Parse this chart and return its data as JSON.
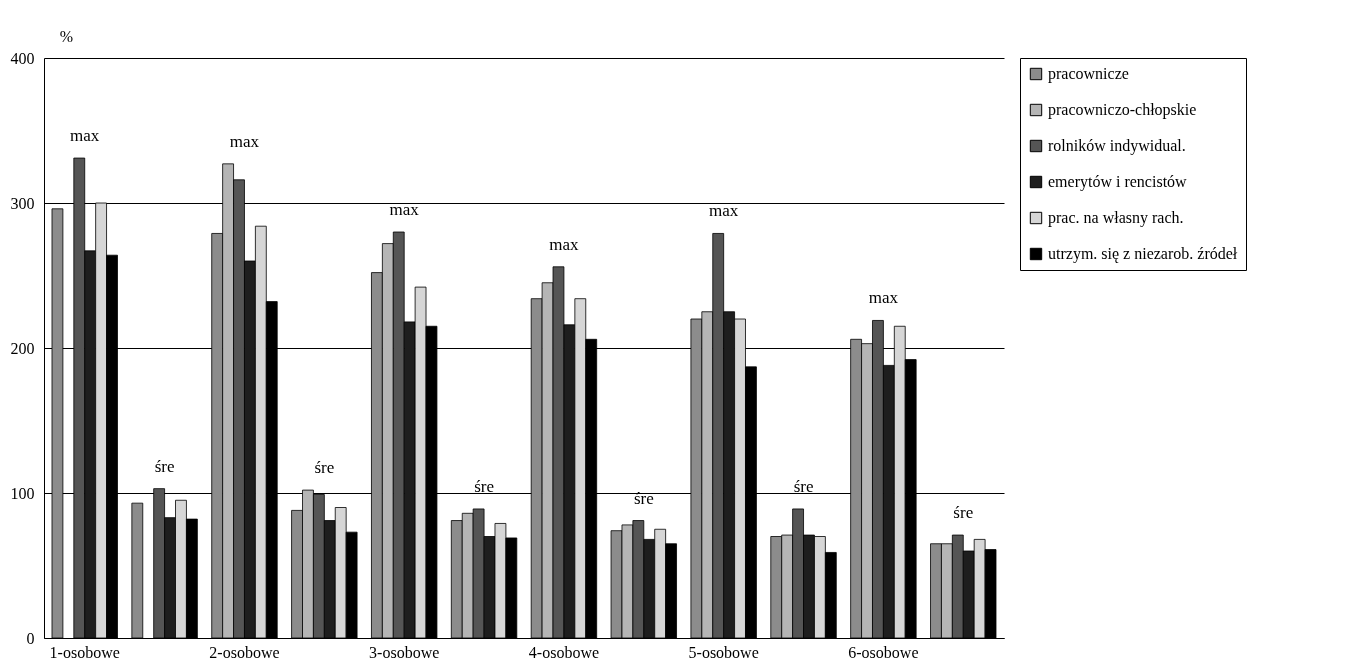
{
  "chart_data": {
    "type": "bar",
    "ylabel": "%",
    "categories": [
      "1-osobowe",
      null,
      "2-osobowe",
      null,
      "3-osobowe",
      null,
      "4-osobowe",
      null,
      "5-osobowe",
      null,
      "6-osobowe",
      null
    ],
    "series": [
      {
        "name": "pracownicze",
        "color": "#8c8c8c",
        "values": [
          296,
          93,
          279,
          88,
          252,
          81,
          234,
          74,
          220,
          70,
          206,
          65
        ]
      },
      {
        "name": "pracowniczo-chłopskie",
        "color": "#b5b5b5",
        "values": [
          null,
          null,
          327,
          102,
          272,
          86,
          245,
          78,
          225,
          71,
          203,
          65
        ]
      },
      {
        "name": "rolników indywidual.",
        "color": "#555555",
        "values": [
          331,
          103,
          316,
          99,
          280,
          89,
          256,
          81,
          279,
          89,
          219,
          71
        ]
      },
      {
        "name": "emerytów i rencistów",
        "color": "#1e1e1e",
        "values": [
          267,
          83,
          260,
          81,
          218,
          70,
          216,
          68,
          225,
          71,
          188,
          60
        ]
      },
      {
        "name": "prac. na własny rach.",
        "color": "#d6d6d6",
        "values": [
          300,
          95,
          284,
          90,
          242,
          79,
          234,
          75,
          220,
          70,
          215,
          68
        ]
      },
      {
        "name": "utrzym. się z niezarob. źródeł",
        "color": "#000000",
        "values": [
          264,
          82,
          232,
          73,
          215,
          69,
          206,
          65,
          187,
          59,
          192,
          61
        ]
      }
    ],
    "annotations": [
      "max",
      "śre",
      "max",
      "śre",
      "max",
      "śre",
      "max",
      "śre",
      "max",
      "śre",
      "max",
      "śre"
    ],
    "ylim": [
      0,
      400
    ],
    "yticks": [
      0,
      100,
      200,
      300,
      400
    ],
    "grid": "y",
    "legend": "right"
  }
}
